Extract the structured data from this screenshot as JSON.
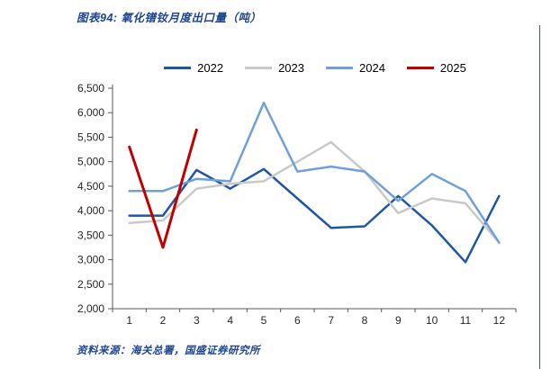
{
  "source": "资料来源：海关总署，国盛证券研究所",
  "chart_data": {
    "type": "line",
    "title": "图表94:  氧化镨钕月度出口量（吨）",
    "x": [
      1,
      2,
      3,
      4,
      5,
      6,
      7,
      8,
      9,
      10,
      11,
      12
    ],
    "series": [
      {
        "name": "2022",
        "color": "#2156A5",
        "values": [
          3900,
          3900,
          4830,
          4450,
          4850,
          4250,
          3650,
          3680,
          4300,
          3700,
          2950,
          4300
        ]
      },
      {
        "name": "2023",
        "color": "#C9C9C9",
        "values": [
          3750,
          3800,
          4450,
          4550,
          4600,
          5000,
          5400,
          4800,
          3950,
          4250,
          4150,
          3350
        ]
      },
      {
        "name": "2024",
        "color": "#6FA0DC",
        "values": [
          4400,
          4400,
          4650,
          4600,
          6200,
          4800,
          4900,
          4800,
          4200,
          4750,
          4400,
          3350
        ]
      },
      {
        "name": "2025",
        "color": "#C00000",
        "values": [
          5300,
          3250,
          5650,
          null,
          null,
          null,
          null,
          null,
          null,
          null,
          null,
          null
        ]
      }
    ],
    "ylim": [
      2000,
      6500
    ],
    "ytick_step": 500,
    "grid": false,
    "legend_position": "top",
    "xlabel": "",
    "ylabel": ""
  }
}
